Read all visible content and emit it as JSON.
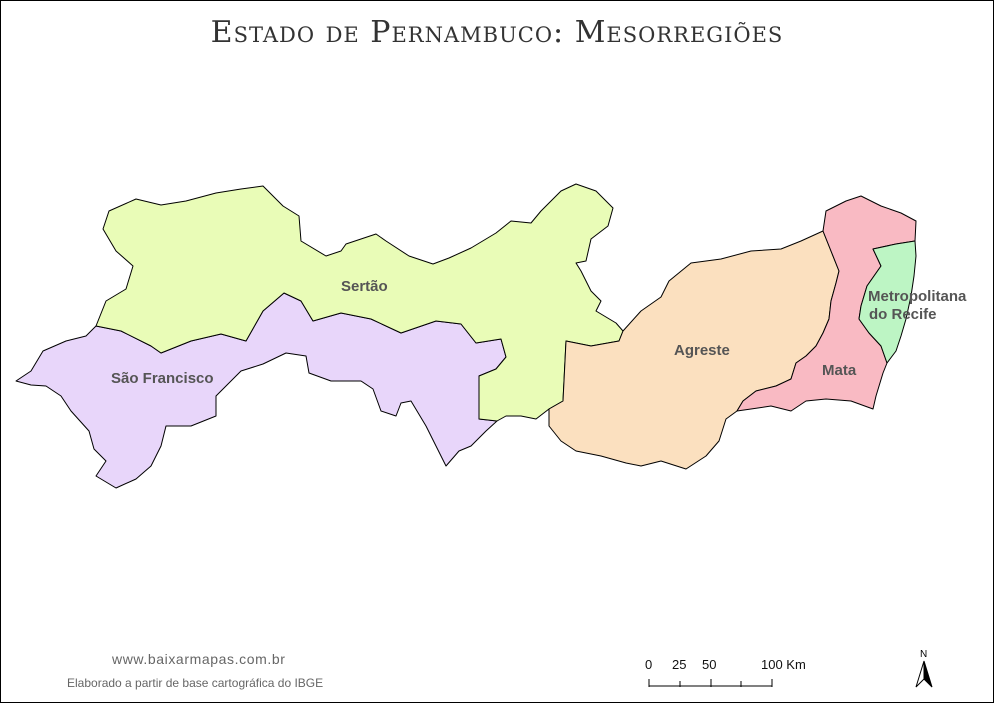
{
  "title": "Estado de Pernambuco: Mesorregiões",
  "regions": [
    {
      "name": "Sertão",
      "color": "#e9fcb7"
    },
    {
      "name": "São Francisco",
      "color": "#e8d6fa"
    },
    {
      "name": "Agreste",
      "color": "#fbe0bf"
    },
    {
      "name": "Mata",
      "color": "#f9bac3"
    },
    {
      "name": "Metropolitana do Recife",
      "line1": "Metropolitana",
      "line2": "do Recife",
      "color": "#bdf5c4"
    }
  ],
  "scale": {
    "labels": [
      "0",
      "25",
      "50",
      "100 Km"
    ]
  },
  "north": {
    "label": "N"
  },
  "footer": {
    "website": "www.baixarmapas.com.br",
    "source": "Elaborado a partir de base cartográfica do IBGE"
  }
}
